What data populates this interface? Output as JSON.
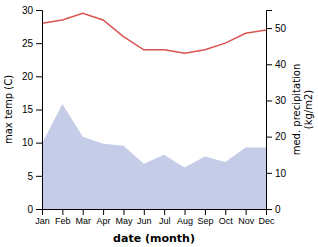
{
  "chart_data": {
    "type": "line",
    "categories": [
      "Jan",
      "Feb",
      "Mar",
      "Apr",
      "May",
      "Jun",
      "Jul",
      "Aug",
      "Sep",
      "Oct",
      "Nov",
      "Dec"
    ],
    "xlabel": "date (month)",
    "ylabel": "max temp (C)",
    "y2label": "med. precipitation\n(kg/m2)",
    "ylim": [
      0,
      30
    ],
    "yticks": [
      0,
      5,
      10,
      15,
      20,
      25,
      30
    ],
    "y2lim": [
      0,
      55
    ],
    "y2ticks": [
      0,
      10,
      20,
      30,
      40,
      50
    ],
    "series": [
      {
        "type": "area",
        "color": "#c5cce8",
        "axis": "y2",
        "values": [
          18,
          29,
          20,
          18,
          17.5,
          12.5,
          15,
          11.5,
          14.5,
          13,
          17,
          17
        ]
      },
      {
        "type": "line",
        "color": "#d9534f",
        "values": [
          28,
          28.5,
          29.5,
          28.5,
          26,
          24,
          24,
          23.5,
          24,
          25,
          26.5,
          27
        ]
      }
    ]
  }
}
